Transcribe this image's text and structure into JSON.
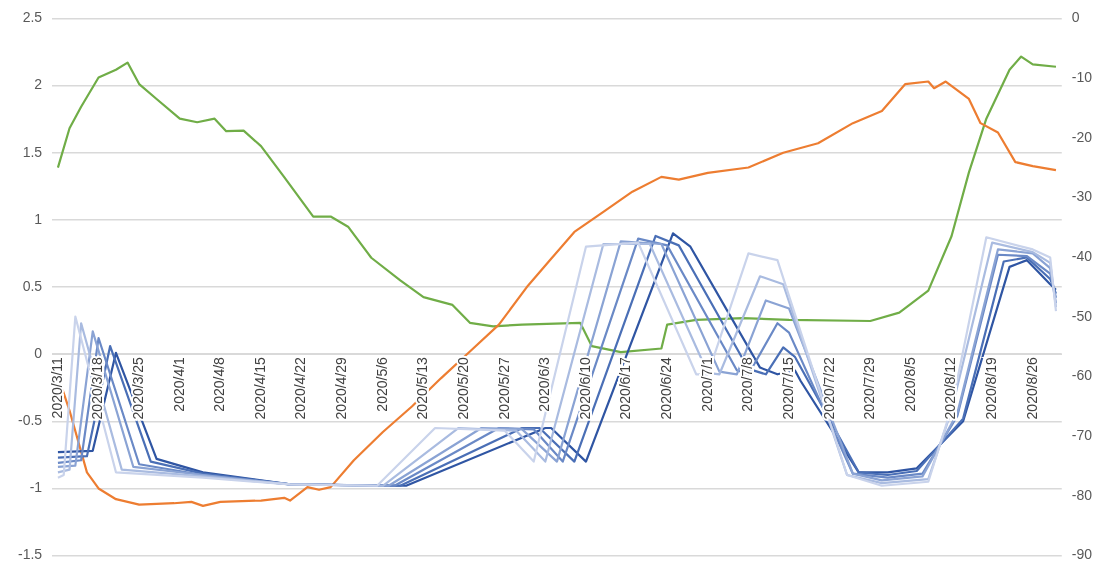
{
  "chart_data": {
    "type": "line",
    "grid": "y",
    "xlim": [
      "2020-03-10",
      "2020-08-31"
    ],
    "xticks": [
      {
        "value": "2020-03-11",
        "label": "2020/3/11"
      },
      {
        "value": "2020-03-18",
        "label": "2020/3/18"
      },
      {
        "value": "2020-03-25",
        "label": "2020/3/25"
      },
      {
        "value": "2020-04-01",
        "label": "2020/4/1"
      },
      {
        "value": "2020-04-08",
        "label": "2020/4/8"
      },
      {
        "value": "2020-04-15",
        "label": "2020/4/15"
      },
      {
        "value": "2020-04-22",
        "label": "2020/4/22"
      },
      {
        "value": "2020-04-29",
        "label": "2020/4/29"
      },
      {
        "value": "2020-05-06",
        "label": "2020/5/6"
      },
      {
        "value": "2020-05-13",
        "label": "2020/5/13"
      },
      {
        "value": "2020-05-20",
        "label": "2020/5/20"
      },
      {
        "value": "2020-05-27",
        "label": "2020/5/27"
      },
      {
        "value": "2020-06-03",
        "label": "2020/6/3"
      },
      {
        "value": "2020-06-10",
        "label": "2020/6/10"
      },
      {
        "value": "2020-06-17",
        "label": "2020/6/17"
      },
      {
        "value": "2020-06-24",
        "label": "2020/6/24"
      },
      {
        "value": "2020-07-01",
        "label": "2020/7/1"
      },
      {
        "value": "2020-07-08",
        "label": "2020/7/8"
      },
      {
        "value": "2020-07-15",
        "label": "2020/7/15"
      },
      {
        "value": "2020-07-22",
        "label": "2020/7/22"
      },
      {
        "value": "2020-07-29",
        "label": "2020/7/29"
      },
      {
        "value": "2020-08-05",
        "label": "2020/8/5"
      },
      {
        "value": "2020-08-12",
        "label": "2020/8/12"
      },
      {
        "value": "2020-08-19",
        "label": "2020/8/19"
      },
      {
        "value": "2020-08-26",
        "label": "2020/8/26"
      }
    ],
    "ylim": [
      -1.5,
      2.5
    ],
    "yticks": [
      -1.5,
      -1,
      -0.5,
      0,
      0.5,
      1,
      1.5,
      2,
      2.5
    ],
    "y2lim": [
      -90,
      0
    ],
    "y2ticks": [
      -90,
      -80,
      -70,
      -60,
      -50,
      -40,
      -30,
      -20,
      -10,
      0
    ],
    "series": [
      {
        "color": "#c9d3eb",
        "x": [
          "2020-03-11",
          "2020-03-12",
          "2020-03-14",
          "2020-03-21",
          "2020-04-05",
          "2020-04-20",
          "2020-05-05",
          "2020-05-15",
          "2020-05-27",
          "2020-06-01",
          "2020-06-10",
          "2020-06-19",
          "2020-06-29",
          "2020-07-01",
          "2020-07-08",
          "2020-07-13",
          "2020-07-25",
          "2020-07-31",
          "2020-08-08",
          "2020-08-12",
          "2020-08-18",
          "2020-08-26",
          "2020-08-29",
          "2020-08-30"
        ],
        "values": [
          -0.92,
          -0.9,
          0.28,
          -0.88,
          -0.92,
          -0.97,
          -0.98,
          -0.55,
          -0.57,
          -0.8,
          0.8,
          0.83,
          -0.15,
          -0.15,
          0.75,
          0.7,
          -0.9,
          -0.98,
          -0.95,
          -0.4,
          0.87,
          0.78,
          0.72,
          0.32
        ]
      },
      {
        "color": "#a9bbe0",
        "x": [
          "2020-03-11",
          "2020-03-13",
          "2020-03-15",
          "2020-03-22",
          "2020-04-05",
          "2020-04-20",
          "2020-05-06",
          "2020-05-19",
          "2020-05-29",
          "2020-06-03",
          "2020-06-13",
          "2020-06-21",
          "2020-07-01",
          "2020-07-03",
          "2020-07-10",
          "2020-07-14",
          "2020-07-25",
          "2020-07-31",
          "2020-08-08",
          "2020-08-12",
          "2020-08-19",
          "2020-08-26",
          "2020-08-29",
          "2020-08-30"
        ],
        "values": [
          -0.88,
          -0.86,
          0.23,
          -0.86,
          -0.91,
          -0.97,
          -0.98,
          -0.55,
          -0.57,
          -0.8,
          0.82,
          0.82,
          -0.14,
          -0.15,
          0.58,
          0.52,
          -0.9,
          -0.96,
          -0.93,
          -0.42,
          0.83,
          0.76,
          0.68,
          0.35
        ]
      },
      {
        "color": "#8aa3d4",
        "x": [
          "2020-03-11",
          "2020-03-14",
          "2020-03-17",
          "2020-03-24",
          "2020-04-05",
          "2020-04-20",
          "2020-05-07",
          "2020-05-23",
          "2020-05-30",
          "2020-06-05",
          "2020-06-16",
          "2020-06-23",
          "2020-07-03",
          "2020-07-06",
          "2020-07-11",
          "2020-07-15",
          "2020-07-26",
          "2020-07-31",
          "2020-08-07",
          "2020-08-13",
          "2020-08-20",
          "2020-08-26",
          "2020-08-29",
          "2020-08-30"
        ],
        "values": [
          -0.84,
          -0.83,
          0.17,
          -0.84,
          -0.9,
          -0.97,
          -0.98,
          -0.55,
          -0.56,
          -0.8,
          0.84,
          0.82,
          -0.13,
          -0.15,
          0.4,
          0.34,
          -0.89,
          -0.94,
          -0.91,
          -0.44,
          0.78,
          0.75,
          0.64,
          0.38
        ]
      },
      {
        "color": "#6a89c6",
        "x": [
          "2020-03-11",
          "2020-03-15",
          "2020-03-18",
          "2020-03-25",
          "2020-04-05",
          "2020-04-20",
          "2020-05-08",
          "2020-05-26",
          "2020-06-01",
          "2020-06-06",
          "2020-06-19",
          "2020-06-24",
          "2020-07-06",
          "2020-07-08",
          "2020-07-13",
          "2020-07-15",
          "2020-07-26",
          "2020-08-01",
          "2020-08-07",
          "2020-08-13",
          "2020-08-20",
          "2020-08-25",
          "2020-08-29",
          "2020-08-30"
        ],
        "values": [
          -0.81,
          -0.79,
          0.12,
          -0.82,
          -0.9,
          -0.97,
          -0.98,
          -0.55,
          -0.56,
          -0.8,
          0.86,
          0.81,
          -0.12,
          -0.15,
          0.23,
          0.16,
          -0.89,
          -0.92,
          -0.89,
          -0.46,
          0.74,
          0.73,
          0.6,
          0.42
        ]
      },
      {
        "color": "#4a6fb6",
        "x": [
          "2020-03-11",
          "2020-03-16",
          "2020-03-20",
          "2020-03-27",
          "2020-04-05",
          "2020-04-20",
          "2020-05-09",
          "2020-05-30",
          "2020-06-02",
          "2020-06-08",
          "2020-06-22",
          "2020-06-26",
          "2020-07-08",
          "2020-07-11",
          "2020-07-14",
          "2020-07-16",
          "2020-07-27",
          "2020-08-01",
          "2020-08-06",
          "2020-08-14",
          "2020-08-21",
          "2020-08-25",
          "2020-08-29",
          "2020-08-30"
        ],
        "values": [
          -0.77,
          -0.76,
          0.06,
          -0.8,
          -0.89,
          -0.97,
          -0.98,
          -0.55,
          -0.55,
          -0.8,
          0.88,
          0.81,
          -0.11,
          -0.15,
          0.05,
          -0.02,
          -0.88,
          -0.9,
          -0.87,
          -0.48,
          0.69,
          0.72,
          0.56,
          0.45
        ]
      },
      {
        "color": "#2f55a3",
        "x": [
          "2020-03-11",
          "2020-03-17",
          "2020-03-21",
          "2020-03-28",
          "2020-04-05",
          "2020-04-20",
          "2020-05-10",
          "2020-06-03",
          "2020-06-04",
          "2020-06-10",
          "2020-06-25",
          "2020-06-28",
          "2020-07-10",
          "2020-07-13",
          "2020-07-16",
          "2020-07-17",
          "2020-07-27",
          "2020-08-01",
          "2020-08-06",
          "2020-08-14",
          "2020-08-22",
          "2020-08-25",
          "2020-08-29",
          "2020-08-30"
        ],
        "values": [
          -0.73,
          -0.72,
          0.01,
          -0.78,
          -0.88,
          -0.97,
          -0.98,
          -0.55,
          -0.55,
          -0.8,
          0.9,
          0.8,
          -0.1,
          -0.15,
          -0.12,
          -0.2,
          -0.88,
          -0.88,
          -0.85,
          -0.5,
          0.65,
          0.7,
          0.52,
          0.48
        ]
      },
      {
        "color": "#ed7d31",
        "x": [
          "2020-03-11",
          "2020-03-13",
          "2020-03-16",
          "2020-03-18",
          "2020-03-21",
          "2020-03-25",
          "2020-03-31",
          "2020-04-03",
          "2020-04-05",
          "2020-04-08",
          "2020-04-15",
          "2020-04-19",
          "2020-04-20",
          "2020-04-23",
          "2020-04-25",
          "2020-04-27",
          "2020-05-01",
          "2020-05-06",
          "2020-05-11",
          "2020-05-16",
          "2020-05-21",
          "2020-05-26",
          "2020-05-31",
          "2020-06-04",
          "2020-06-08",
          "2020-06-13",
          "2020-06-18",
          "2020-06-23",
          "2020-06-26",
          "2020-07-01",
          "2020-07-08",
          "2020-07-14",
          "2020-07-20",
          "2020-07-26",
          "2020-07-31",
          "2020-08-04",
          "2020-08-08",
          "2020-08-09",
          "2020-08-11",
          "2020-08-15",
          "2020-08-17",
          "2020-08-20",
          "2020-08-23",
          "2020-08-26",
          "2020-08-30"
        ],
        "values": [
          -0.16,
          -0.42,
          -0.88,
          -1.0,
          -1.08,
          -1.12,
          -1.11,
          -1.1,
          -1.13,
          -1.1,
          -1.09,
          -1.07,
          -1.09,
          -0.99,
          -1.01,
          -0.99,
          -0.79,
          -0.58,
          -0.39,
          -0.18,
          0.02,
          0.22,
          0.51,
          0.71,
          0.91,
          1.06,
          1.21,
          1.32,
          1.3,
          1.35,
          1.39,
          1.5,
          1.57,
          1.72,
          1.81,
          2.01,
          2.03,
          1.98,
          2.03,
          1.9,
          1.72,
          1.65,
          1.43,
          1.4,
          1.37
        ]
      },
      {
        "color": "#70ad47",
        "axis": "y2",
        "x": [
          "2020-03-11",
          "2020-03-13",
          "2020-03-15",
          "2020-03-18",
          "2020-03-21",
          "2020-03-23",
          "2020-03-25",
          "2020-03-28",
          "2020-04-01",
          "2020-04-04",
          "2020-04-07",
          "2020-04-09",
          "2020-04-12",
          "2020-04-15",
          "2020-04-19",
          "2020-04-24",
          "2020-04-27",
          "2020-04-30",
          "2020-05-04",
          "2020-05-09",
          "2020-05-13",
          "2020-05-18",
          "2020-05-21",
          "2020-05-25",
          "2020-05-30",
          "2020-06-09",
          "2020-06-11",
          "2020-06-16",
          "2020-06-23",
          "2020-06-24",
          "2020-06-29",
          "2020-07-07",
          "2020-07-15",
          "2020-07-29",
          "2020-08-03",
          "2020-08-08",
          "2020-08-12",
          "2020-08-15",
          "2020-08-18",
          "2020-08-22",
          "2020-08-24",
          "2020-08-26",
          "2020-08-30"
        ],
        "values": [
          -25,
          -18.4,
          -14.8,
          -9.9,
          -8.6,
          -7.4,
          -11,
          -13.5,
          -16.8,
          -17.4,
          -16.8,
          -18.9,
          -18.8,
          -21.4,
          -26.6,
          -33.2,
          -33.2,
          -34.9,
          -40.1,
          -43.9,
          -46.7,
          -48,
          -51,
          -51.6,
          -51.3,
          -51,
          -54.9,
          -55.9,
          -55.3,
          -51.3,
          -50.5,
          -50.2,
          -50.5,
          -50.7,
          -49.3,
          -45.6,
          -36.5,
          -25.8,
          -16.8,
          -8.6,
          -6.4,
          -7.7,
          -8.1
        ]
      }
    ]
  }
}
